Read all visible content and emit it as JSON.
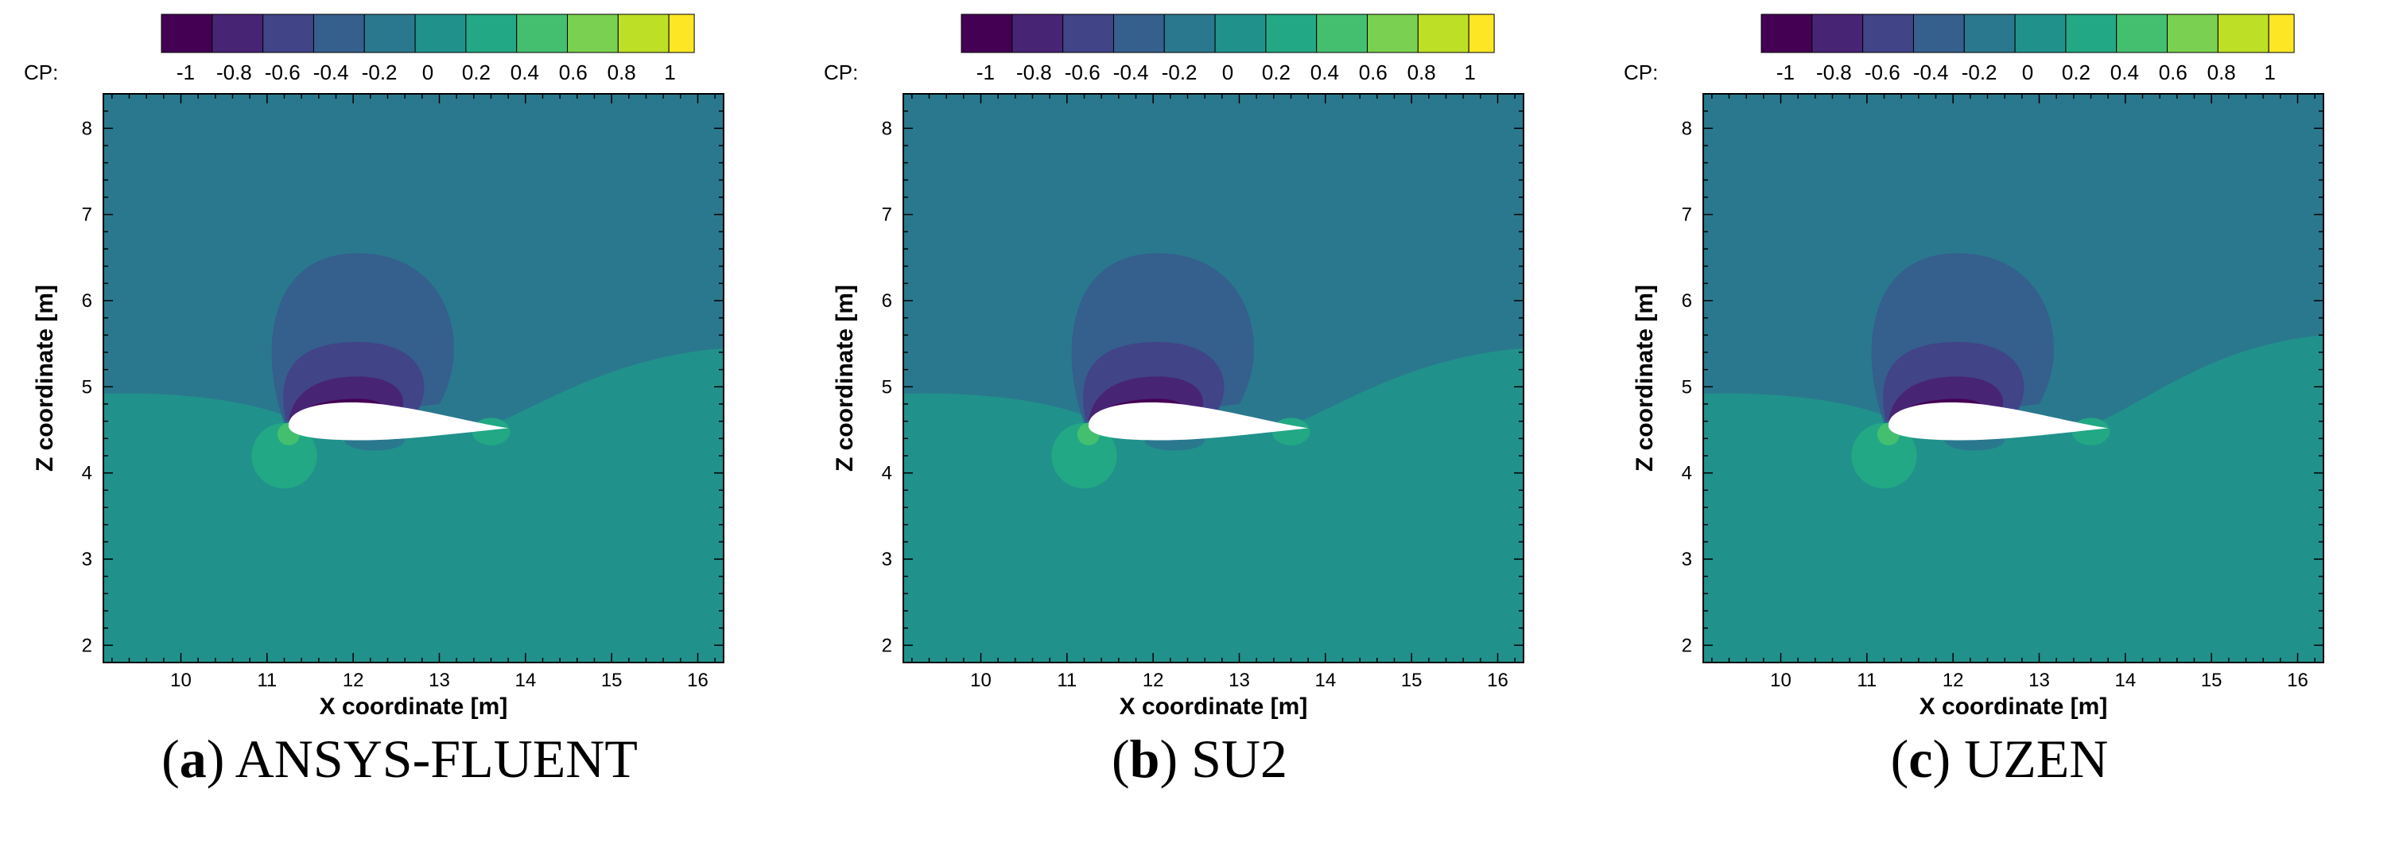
{
  "chart_data": [
    {
      "type": "contour",
      "panel_letter": "a",
      "solver": "ANSYS-FLUENT",
      "xlabel": "X coordinate [m]",
      "ylabel": "Z coordinate [m]",
      "colorbar_label": "CP:",
      "xlim": [
        9.1,
        16.3
      ],
      "ylim": [
        1.8,
        8.4
      ],
      "xticks": [
        "10",
        "11",
        "12",
        "13",
        "14",
        "15",
        "16"
      ],
      "yticks": [
        "2",
        "3",
        "4",
        "5",
        "6",
        "7",
        "8"
      ],
      "colorbar_ticks": [
        "-1",
        "-0.8",
        "-0.6",
        "-0.4",
        "-0.2",
        "0",
        "0.2",
        "0.4",
        "0.6",
        "0.8",
        "1"
      ],
      "colorbar_range": [
        -1.1,
        1.1
      ],
      "colormap": [
        "#440154",
        "#482475",
        "#414487",
        "#355f8d",
        "#2a788e",
        "#21918c",
        "#22a884",
        "#44bf70",
        "#7ad151",
        "#bddf26",
        "#fde725"
      ],
      "background_levels": {
        "upper": "#2a788e",
        "lower": "#21918c"
      },
      "divider_right_z": 5.45,
      "airfoil": {
        "leading_edge": [
          11.25,
          4.55
        ],
        "trailing_edge": [
          13.8,
          4.52
        ],
        "chord": 2.55
      }
    },
    {
      "type": "contour",
      "panel_letter": "b",
      "solver": "SU2",
      "xlabel": "X coordinate [m]",
      "ylabel": "Z coordinate [m]",
      "colorbar_label": "CP:",
      "xlim": [
        9.1,
        16.3
      ],
      "ylim": [
        1.8,
        8.4
      ],
      "xticks": [
        "10",
        "11",
        "12",
        "13",
        "14",
        "15",
        "16"
      ],
      "yticks": [
        "2",
        "3",
        "4",
        "5",
        "6",
        "7",
        "8"
      ],
      "colorbar_ticks": [
        "-1",
        "-0.8",
        "-0.6",
        "-0.4",
        "-0.2",
        "0",
        "0.2",
        "0.4",
        "0.6",
        "0.8",
        "1"
      ],
      "colorbar_range": [
        -1.1,
        1.1
      ],
      "colormap": [
        "#440154",
        "#482475",
        "#414487",
        "#355f8d",
        "#2a788e",
        "#21918c",
        "#22a884",
        "#44bf70",
        "#7ad151",
        "#bddf26",
        "#fde725"
      ],
      "background_levels": {
        "upper": "#2a788e",
        "lower": "#21918c"
      },
      "divider_right_z": 5.45,
      "airfoil": {
        "leading_edge": [
          11.25,
          4.55
        ],
        "trailing_edge": [
          13.8,
          4.52
        ],
        "chord": 2.55
      }
    },
    {
      "type": "contour",
      "panel_letter": "c",
      "solver": "UZEN",
      "xlabel": "X coordinate [m]",
      "ylabel": "Z coordinate [m]",
      "colorbar_label": "CP:",
      "xlim": [
        9.1,
        16.3
      ],
      "ylim": [
        1.8,
        8.4
      ],
      "xticks": [
        "10",
        "11",
        "12",
        "13",
        "14",
        "15",
        "16"
      ],
      "yticks": [
        "2",
        "3",
        "4",
        "5",
        "6",
        "7",
        "8"
      ],
      "colorbar_ticks": [
        "-1",
        "-0.8",
        "-0.6",
        "-0.4",
        "-0.2",
        "0",
        "0.2",
        "0.4",
        "0.6",
        "0.8",
        "1"
      ],
      "colorbar_range": [
        -1.1,
        1.1
      ],
      "colormap": [
        "#440154",
        "#482475",
        "#414487",
        "#355f8d",
        "#2a788e",
        "#21918c",
        "#22a884",
        "#44bf70",
        "#7ad151",
        "#bddf26",
        "#fde725"
      ],
      "background_levels": {
        "upper": "#2a788e",
        "lower": "#21918c"
      },
      "divider_right_z": 5.6,
      "airfoil": {
        "leading_edge": [
          11.25,
          4.55
        ],
        "trailing_edge": [
          13.8,
          4.52
        ],
        "chord": 2.55
      }
    }
  ]
}
